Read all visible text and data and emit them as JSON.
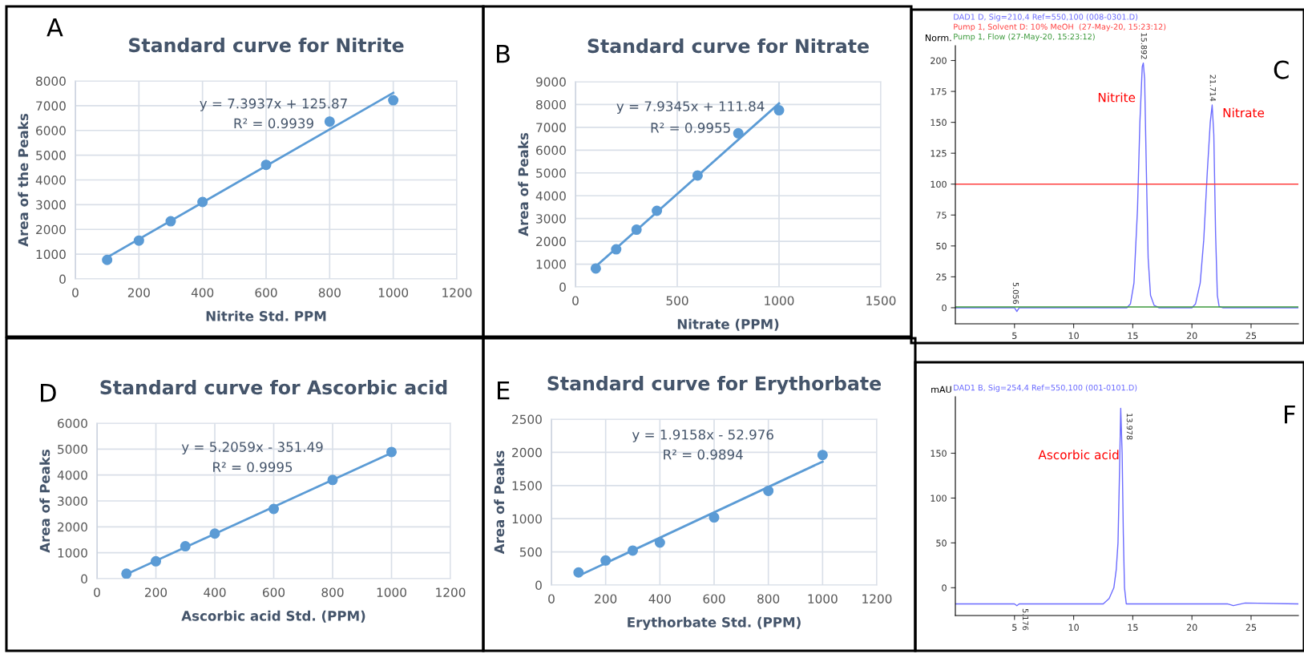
{
  "chart_data": [
    {
      "type": "scatter",
      "title": "Standard curve for Nitrite",
      "xlabel": "Nitrite Std. PPM",
      "ylabel": "Area of the Peaks",
      "xlim": [
        0,
        1200
      ],
      "xticks": [
        0,
        200,
        400,
        600,
        800,
        1000,
        1200
      ],
      "ylim": [
        0,
        8000
      ],
      "yticks": [
        0,
        1000,
        2000,
        3000,
        4000,
        5000,
        6000,
        7000,
        8000
      ],
      "grid": true,
      "x": [
        100,
        200,
        300,
        400,
        600,
        800,
        1000
      ],
      "series": [
        {
          "type": "scatter",
          "marker": "circle",
          "color": "#5b9bd5",
          "values": [
            770,
            1550,
            2330,
            3110,
            4610,
            6360,
            7220
          ]
        },
        {
          "type": "line",
          "color": "#5b9bd5",
          "x": [
            100,
            1000
          ],
          "values": [
            870,
            7520
          ]
        }
      ],
      "annotations": [
        "A",
        "y = 7.3937x + 125.87",
        "R² = 0.9939"
      ]
    },
    {
      "type": "scatter",
      "title": "Standard curve for Nitrate",
      "xlabel": "Nitrate (PPM)",
      "ylabel": "Area of Peaks",
      "xlim": [
        0,
        1500
      ],
      "xticks": [
        0,
        500,
        1000,
        1500
      ],
      "ylim": [
        0,
        9000
      ],
      "yticks": [
        0,
        1000,
        2000,
        3000,
        4000,
        5000,
        6000,
        7000,
        8000,
        9000
      ],
      "grid": true,
      "x": [
        100,
        200,
        300,
        400,
        600,
        800,
        1000
      ],
      "series": [
        {
          "type": "scatter",
          "marker": "circle",
          "color": "#5b9bd5",
          "values": [
            810,
            1650,
            2510,
            3340,
            4890,
            6740,
            7750
          ]
        },
        {
          "type": "line",
          "color": "#5b9bd5",
          "x": [
            100,
            1000
          ],
          "values": [
            900,
            8050
          ]
        }
      ],
      "annotations": [
        "B",
        "y = 7.9345x + 111.84",
        "R² = 0.9955"
      ]
    },
    {
      "type": "line",
      "ylabel": "Norm.",
      "xlim": [
        0,
        29
      ],
      "xticks": [
        5,
        10,
        15,
        20,
        25
      ],
      "ylim": [
        -13,
        212
      ],
      "yticks": [
        0,
        25,
        50,
        75,
        100,
        125,
        150,
        175,
        200
      ],
      "legend": "top left",
      "series": [
        {
          "name": "DAD1 D, Sig=210,4 Ref=550,100 (008-0301.D)",
          "color": "#6b6bff",
          "x": [
            0,
            5.0,
            5.2,
            5.4,
            14.5,
            14.8,
            15.1,
            15.4,
            15.6,
            15.8,
            15.89,
            16.0,
            16.15,
            16.3,
            16.5,
            16.8,
            17.2,
            20.0,
            20.3,
            20.7,
            21.0,
            21.3,
            21.55,
            21.71,
            21.85,
            22.0,
            22.15,
            22.3,
            22.6,
            29
          ],
          "values": [
            0,
            0,
            -3,
            0,
            0,
            3,
            20,
            80,
            150,
            195,
            198,
            185,
            110,
            40,
            10,
            2,
            0,
            0,
            3,
            20,
            55,
            110,
            150,
            164,
            140,
            60,
            10,
            1,
            0,
            0
          ]
        },
        {
          "name": "Pump 1, Solvent D: 10% MeOH  (27-May-20, 15:23:12)",
          "color": "#ff4040",
          "x": [
            0,
            29
          ],
          "values": [
            100,
            100
          ]
        },
        {
          "name": "Pump 1, Flow (27-May-20, 15:23:12)",
          "color": "#3c9a3c",
          "x": [
            0,
            29
          ],
          "values": [
            0.6,
            0.6
          ]
        }
      ],
      "annotations": [
        "C",
        {
          "text": "5.056",
          "x": 5.056,
          "y": 0
        },
        {
          "text": "15.892",
          "x": 15.892,
          "y": 198
        },
        {
          "text": "21.714",
          "x": 21.714,
          "y": 164
        },
        "Nitrite",
        "Nitrate"
      ]
    },
    {
      "type": "scatter",
      "title": "Standard curve for Ascorbic acid",
      "xlabel": "Ascorbic acid Std. (PPM)",
      "ylabel": "Area of Peaks",
      "xlim": [
        0,
        1200
      ],
      "xticks": [
        0,
        200,
        400,
        600,
        800,
        1000,
        1200
      ],
      "ylim": [
        0,
        6000
      ],
      "yticks": [
        0,
        1000,
        2000,
        3000,
        4000,
        5000,
        6000
      ],
      "grid": true,
      "x": [
        100,
        200,
        300,
        400,
        600,
        800,
        1000
      ],
      "series": [
        {
          "type": "scatter",
          "marker": "circle",
          "color": "#5b9bd5",
          "values": [
            190,
            670,
            1250,
            1740,
            2690,
            3810,
            4890
          ]
        },
        {
          "type": "line",
          "color": "#5b9bd5",
          "x": [
            100,
            1000
          ],
          "values": [
            170,
            4850
          ]
        }
      ],
      "annotations": [
        "D",
        "y = 5.2059x - 351.49",
        "R² = 0.9995"
      ]
    },
    {
      "type": "scatter",
      "title": "Standard curve for Erythorbate",
      "xlabel": "Erythorbate Std. (PPM)",
      "ylabel": "Area of Peaks",
      "xlim": [
        0,
        1200
      ],
      "xticks": [
        0,
        200,
        400,
        600,
        800,
        1000,
        1200
      ],
      "ylim": [
        0,
        2500
      ],
      "yticks": [
        0,
        500,
        1000,
        1500,
        2000,
        2500
      ],
      "grid": true,
      "x": [
        100,
        200,
        300,
        400,
        600,
        800,
        1000
      ],
      "series": [
        {
          "type": "scatter",
          "marker": "circle",
          "color": "#5b9bd5",
          "values": [
            190,
            370,
            520,
            640,
            1020,
            1420,
            1960
          ]
        },
        {
          "type": "line",
          "color": "#5b9bd5",
          "x": [
            100,
            1000
          ],
          "values": [
            140,
            1860
          ]
        }
      ],
      "annotations": [
        "E",
        "y = 1.9158x - 52.976",
        "R² = 0.9894"
      ]
    },
    {
      "type": "line",
      "ylabel": "mAU",
      "xlim": [
        0,
        29
      ],
      "xticks": [
        5,
        10,
        15,
        20,
        25
      ],
      "ylim": [
        -31,
        213
      ],
      "yticks": [
        0,
        50,
        100,
        150
      ],
      "legend": "top left",
      "series": [
        {
          "name": "DAD1 B, Sig=254,4 Ref=550,100 (001-0101.D)",
          "color": "#6b6bff",
          "x": [
            0,
            5.0,
            5.2,
            5.4,
            12.5,
            13.0,
            13.4,
            13.6,
            13.75,
            13.88,
            13.98,
            14.1,
            14.2,
            14.3,
            14.45,
            23.0,
            23.5,
            24.5,
            29
          ],
          "values": [
            -18,
            -18,
            -20,
            -18,
            -18,
            -12,
            0,
            20,
            50,
            130,
            200,
            150,
            60,
            0,
            -18,
            -18,
            -20,
            -17,
            -18
          ]
        }
      ],
      "annotations": [
        "F",
        {
          "text": "5.176",
          "x": 5.176,
          "y": -18
        },
        {
          "text": "13.978",
          "x": 13.978,
          "y": 200
        },
        "Ascorbic acid"
      ]
    }
  ]
}
